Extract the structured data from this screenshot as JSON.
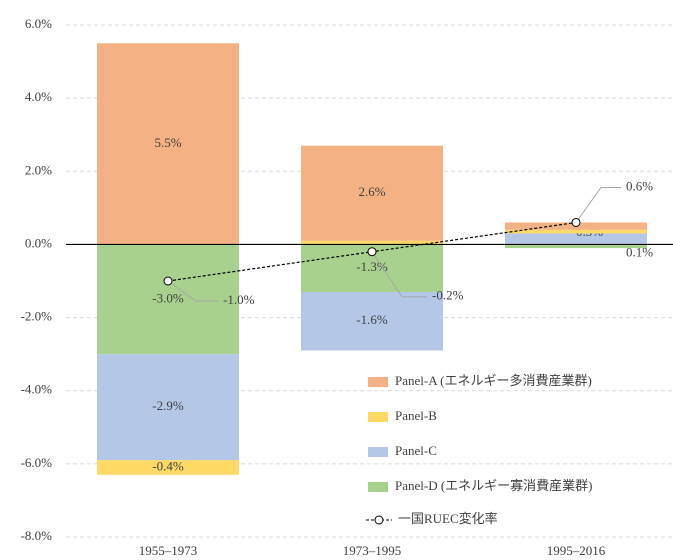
{
  "chart_data": {
    "type": "stacked-bar-line",
    "categories": [
      "1955–1973",
      "1973–1995",
      "1995–2016"
    ],
    "series": [
      {
        "name": "Panel-A (エネルギー多消費産業群)",
        "color": "#f4b183",
        "values": [
          5.5,
          2.6,
          0.2
        ],
        "value_labels": [
          "5.5%",
          "2.6%",
          "0.2%"
        ]
      },
      {
        "name": "Panel-B",
        "color": "#ffd966",
        "values": [
          -0.4,
          0.1,
          0.1
        ],
        "value_labels": [
          "-0.4%",
          "0.1%",
          "0.1%"
        ]
      },
      {
        "name": "Panel-C",
        "color": "#b4c7e7",
        "values": [
          -2.9,
          -1.6,
          0.3
        ],
        "value_labels": [
          "-2.9%",
          "-1.6%",
          "0.3%"
        ]
      },
      {
        "name": "Panel-D (エネルギー寡消費産業群)",
        "color": "#a9d18e",
        "values": [
          -3.0,
          -1.3,
          -0.1
        ],
        "value_labels": [
          "-3.0%",
          "-1.3%",
          "-0.1%"
        ]
      }
    ],
    "line": {
      "name": "一国RUEC変化率",
      "color": "#000000",
      "values": [
        -1.0,
        -0.2,
        0.6
      ],
      "value_labels": [
        "-1.0%",
        "-0.2%",
        "0.6%"
      ]
    },
    "ylim": [
      -8,
      6
    ],
    "yticks": [
      {
        "value": -8,
        "label": "-8.0%"
      },
      {
        "value": -6,
        "label": "-6.0%"
      },
      {
        "value": -4,
        "label": "-4.0%"
      },
      {
        "value": -2,
        "label": "-2.0%"
      },
      {
        "value": 0,
        "label": "0.0%"
      },
      {
        "value": 2,
        "label": "2.0%"
      },
      {
        "value": 4,
        "label": "4.0%"
      },
      {
        "value": 6,
        "label": "6.0%"
      }
    ],
    "grid": true
  }
}
